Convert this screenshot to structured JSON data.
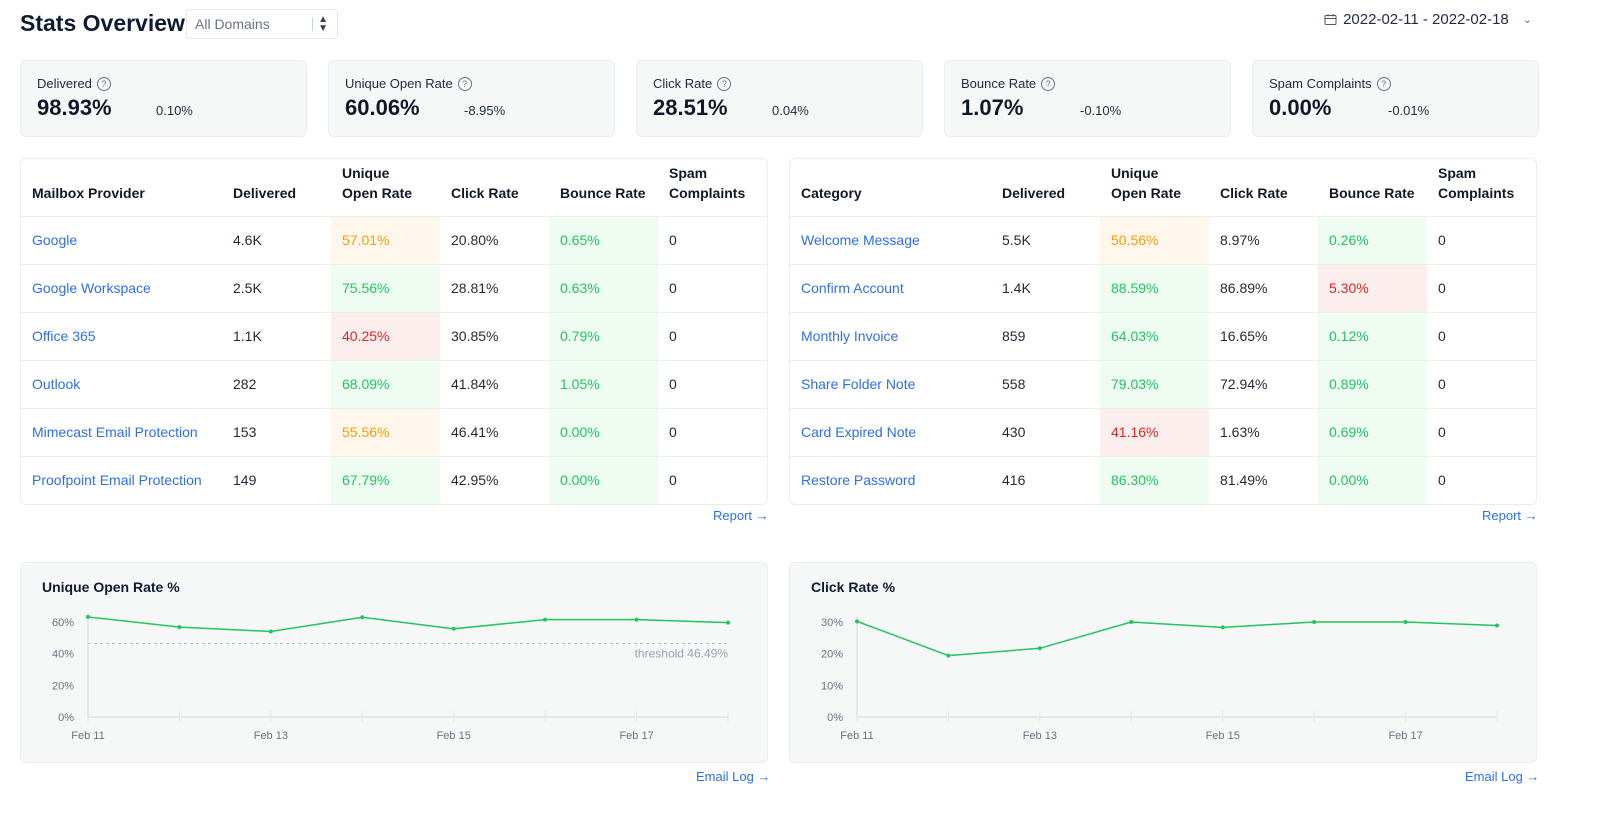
{
  "header": {
    "title": "Stats Overview",
    "domain_select": "All Domains",
    "date_range": "2022-02-11 - 2022-02-18",
    "calendar_icon": "calendar-icon"
  },
  "cards": [
    {
      "label": "Delivered",
      "value": "98.93%",
      "change": "0.10%"
    },
    {
      "label": "Unique Open Rate",
      "value": "60.06%",
      "change": "-8.95%"
    },
    {
      "label": "Click Rate",
      "value": "28.51%",
      "change": "0.04%"
    },
    {
      "label": "Bounce Rate",
      "value": "1.07%",
      "change": "-0.10%"
    },
    {
      "label": "Spam Complaints",
      "value": "0.00%",
      "change": "-0.01%"
    }
  ],
  "colors": {
    "link": "#2f6fe4",
    "good": "#22c55e",
    "warn": "#f59e0b",
    "bad": "#dc2626",
    "line": "#22c55e"
  },
  "tables": [
    {
      "columns": [
        "Mailbox Provider",
        "Delivered",
        "Unique Open Rate",
        "Click Rate",
        "Bounce Rate",
        "Spam Complaints"
      ],
      "rows": [
        {
          "cells": [
            "Google",
            "4.6K",
            "57.01%",
            "20.80%",
            "0.65%",
            "0"
          ],
          "status": [
            "link",
            "",
            "orange",
            "",
            "green",
            ""
          ]
        },
        {
          "cells": [
            "Google Workspace",
            "2.5K",
            "75.56%",
            "28.81%",
            "0.63%",
            "0"
          ],
          "status": [
            "link",
            "",
            "green",
            "",
            "green",
            ""
          ]
        },
        {
          "cells": [
            "Office 365",
            "1.1K",
            "40.25%",
            "30.85%",
            "0.79%",
            "0"
          ],
          "status": [
            "link",
            "",
            "red",
            "",
            "green",
            ""
          ]
        },
        {
          "cells": [
            "Outlook",
            "282",
            "68.09%",
            "41.84%",
            "1.05%",
            "0"
          ],
          "status": [
            "link",
            "",
            "green",
            "",
            "green",
            ""
          ]
        },
        {
          "cells": [
            "Mimecast Email Protection",
            "153",
            "55.56%",
            "46.41%",
            "0.00%",
            "0"
          ],
          "status": [
            "link",
            "",
            "orange",
            "",
            "green",
            ""
          ]
        },
        {
          "cells": [
            "Proofpoint Email Protection",
            "149",
            "67.79%",
            "42.95%",
            "0.00%",
            "0"
          ],
          "status": [
            "link",
            "",
            "green",
            "",
            "green",
            ""
          ]
        }
      ],
      "link": "Report →"
    },
    {
      "columns": [
        "Category",
        "Delivered",
        "Unique Open Rate",
        "Click Rate",
        "Bounce Rate",
        "Spam Complaints"
      ],
      "rows": [
        {
          "cells": [
            "Welcome Message",
            "5.5K",
            "50.56%",
            "8.97%",
            "0.26%",
            "0"
          ],
          "status": [
            "link",
            "",
            "orange",
            "",
            "green",
            ""
          ]
        },
        {
          "cells": [
            "Confirm Account",
            "1.4K",
            "88.59%",
            "86.89%",
            "5.30%",
            "0"
          ],
          "status": [
            "link",
            "",
            "green",
            "",
            "red",
            ""
          ]
        },
        {
          "cells": [
            "Monthly Invoice",
            "859",
            "64.03%",
            "16.65%",
            "0.12%",
            "0"
          ],
          "status": [
            "link",
            "",
            "green",
            "",
            "green",
            ""
          ]
        },
        {
          "cells": [
            "Share Folder Note",
            "558",
            "79.03%",
            "72.94%",
            "0.89%",
            "0"
          ],
          "status": [
            "link",
            "",
            "green",
            "",
            "green",
            ""
          ]
        },
        {
          "cells": [
            "Card Expired Note",
            "430",
            "41.16%",
            "1.63%",
            "0.69%",
            "0"
          ],
          "status": [
            "link",
            "",
            "red",
            "",
            "green",
            ""
          ]
        },
        {
          "cells": [
            "Restore Password",
            "416",
            "86.30%",
            "81.49%",
            "0.00%",
            "0"
          ],
          "status": [
            "link",
            "",
            "green",
            "",
            "green",
            ""
          ]
        }
      ],
      "link": "Report →"
    }
  ],
  "chart_data": [
    {
      "type": "line",
      "title": "Unique Open Rate %",
      "x": [
        "Feb 11",
        "Feb 12",
        "Feb 13",
        "Feb 14",
        "Feb 15",
        "Feb 16",
        "Feb 17",
        "Feb 18"
      ],
      "x_tick_labels": [
        "Feb 11",
        "Feb 13",
        "Feb 15",
        "Feb 17"
      ],
      "values": [
        63.2,
        56.8,
        54.0,
        63.0,
        55.7,
        61.5,
        61.5,
        59.6
      ],
      "ylim": [
        0,
        60
      ],
      "y_ticks": [
        "0%",
        "20%",
        "40%",
        "60%"
      ],
      "threshold": {
        "value": 46.49,
        "label": "threshold 46.49%"
      },
      "link": "Email Log →"
    },
    {
      "type": "line",
      "title": "Click Rate %",
      "x": [
        "Feb 11",
        "Feb 12",
        "Feb 13",
        "Feb 14",
        "Feb 15",
        "Feb 16",
        "Feb 17",
        "Feb 18"
      ],
      "x_tick_labels": [
        "Feb 11",
        "Feb 13",
        "Feb 15",
        "Feb 17"
      ],
      "values": [
        30.2,
        19.4,
        21.7,
        30.0,
        28.3,
        30.0,
        30.0,
        28.9
      ],
      "ylim": [
        0,
        30
      ],
      "y_ticks": [
        "0%",
        "10%",
        "20%",
        "30%"
      ],
      "link": "Email Log →"
    }
  ]
}
